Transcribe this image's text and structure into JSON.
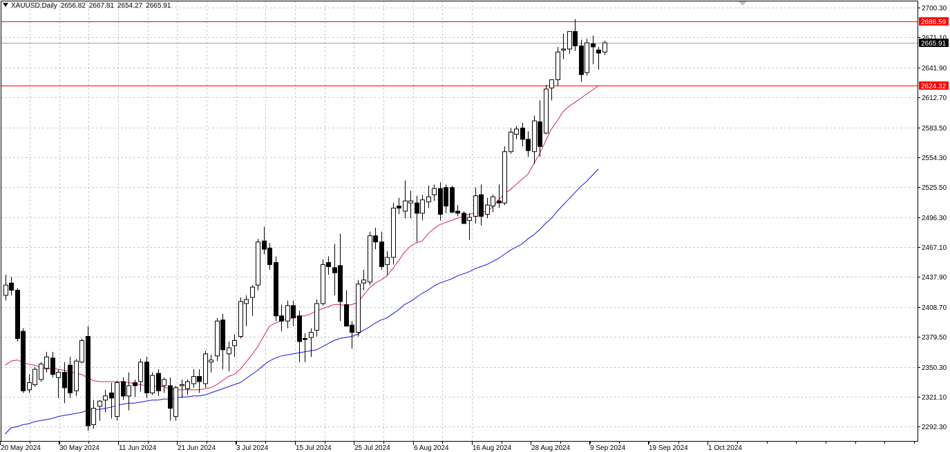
{
  "header": {
    "symbol": "XAUUSD,Daily",
    "open": "2656.82",
    "high": "2667.81",
    "low": "2654.27",
    "close": "2665.91"
  },
  "colors": {
    "background": "#ffffff",
    "grid": "#c8c8c8",
    "candle_outline": "#000000",
    "bull_fill": "#ffffff",
    "bear_fill": "#000000",
    "ma_fast": "#d6245a",
    "ma_slow": "#1414e6",
    "level_line": "#ff0000",
    "price_line": "#a0a0a0",
    "tag_red": "#ff0000",
    "tag_black": "#000000"
  },
  "chart_data": {
    "type": "candlestick",
    "y_ticks": [
      2700.3,
      2671.1,
      2641.9,
      2612.7,
      2583.5,
      2554.3,
      2525.5,
      2496.3,
      2467.1,
      2437.9,
      2408.7,
      2379.5,
      2350.3,
      2321.1,
      2292.3
    ],
    "y_tick_labels": [
      "2700.30",
      "2671.10",
      "2641.90",
      "2612.70",
      "2583.50",
      "2554.30",
      "2525.50",
      "2496.30",
      "2467.10",
      "2437.90",
      "2408.70",
      "2379.50",
      "2350.30",
      "2321.10",
      "2292.30"
    ],
    "x_tick_labels": [
      "20 May 2024",
      "30 May 2024",
      "11 Jun 2024",
      "21 Jun 2024",
      "3 Jul 2024",
      "15 Jul 2024",
      "25 Jul 2024",
      "6 Aug 2024",
      "16 Aug 2024",
      "28 Aug 2024",
      "9 Sep 2024",
      "19 Sep 2024",
      "1 Oct 2024"
    ],
    "horizontal_levels": [
      {
        "value": 2686.59,
        "label": "2686.59",
        "style": "level"
      },
      {
        "value": 2624.32,
        "label": "2624.32",
        "style": "level"
      },
      {
        "value": 2665.91,
        "label": "2665.91",
        "style": "current"
      }
    ],
    "candles": [
      [
        2420,
        2440,
        2415,
        2430
      ],
      [
        2432,
        2438,
        2420,
        2425
      ],
      [
        2425,
        2427,
        2375,
        2378
      ],
      [
        2385,
        2388,
        2325,
        2327
      ],
      [
        2328,
        2343,
        2325,
        2335
      ],
      [
        2333,
        2350,
        2331,
        2348
      ],
      [
        2338,
        2355,
        2336,
        2353
      ],
      [
        2349,
        2365,
        2345,
        2360
      ],
      [
        2359,
        2365,
        2340,
        2343
      ],
      [
        2340,
        2348,
        2320,
        2345
      ],
      [
        2345,
        2355,
        2315,
        2330
      ],
      [
        2352,
        2360,
        2320,
        2325
      ],
      [
        2327,
        2358,
        2322,
        2356
      ],
      [
        2355,
        2378,
        2354,
        2376
      ],
      [
        2380,
        2390,
        2288,
        2293
      ],
      [
        2294,
        2318,
        2290,
        2310
      ],
      [
        2312,
        2318,
        2298,
        2317
      ],
      [
        2318,
        2328,
        2306,
        2322
      ],
      [
        2325,
        2335,
        2300,
        2320
      ],
      [
        2302,
        2337,
        2298,
        2335
      ],
      [
        2336,
        2340,
        2318,
        2322
      ],
      [
        2322,
        2345,
        2308,
        2332
      ],
      [
        2335,
        2338,
        2321,
        2332
      ],
      [
        2336,
        2358,
        2326,
        2355
      ],
      [
        2355,
        2360,
        2320,
        2325
      ],
      [
        2325,
        2345,
        2323,
        2342
      ],
      [
        2344,
        2348,
        2322,
        2327
      ],
      [
        2332,
        2340,
        2325,
        2338
      ],
      [
        2332,
        2340,
        2298,
        2310
      ],
      [
        2302,
        2332,
        2298,
        2330
      ],
      [
        2332,
        2338,
        2320,
        2333
      ],
      [
        2329,
        2338,
        2323,
        2336
      ],
      [
        2334,
        2348,
        2330,
        2341
      ],
      [
        2341,
        2348,
        2325,
        2336
      ],
      [
        2334,
        2366,
        2330,
        2363
      ],
      [
        2355,
        2362,
        2345,
        2357
      ],
      [
        2361,
        2398,
        2356,
        2395
      ],
      [
        2396,
        2402,
        2348,
        2367
      ],
      [
        2363,
        2375,
        2346,
        2369
      ],
      [
        2371,
        2382,
        2360,
        2376
      ],
      [
        2380,
        2418,
        2378,
        2414
      ],
      [
        2412,
        2420,
        2390,
        2416
      ],
      [
        2418,
        2430,
        2400,
        2428
      ],
      [
        2430,
        2475,
        2425,
        2472
      ],
      [
        2473,
        2487,
        2460,
        2465
      ],
      [
        2466,
        2471,
        2445,
        2450
      ],
      [
        2452,
        2458,
        2395,
        2400
      ],
      [
        2400,
        2411,
        2385,
        2395
      ],
      [
        2395,
        2415,
        2388,
        2410
      ],
      [
        2410,
        2415,
        2390,
        2398
      ],
      [
        2400,
        2405,
        2355,
        2375
      ],
      [
        2378,
        2383,
        2355,
        2377
      ],
      [
        2379,
        2388,
        2360,
        2384
      ],
      [
        2386,
        2416,
        2380,
        2412
      ],
      [
        2412,
        2455,
        2410,
        2450
      ],
      [
        2452,
        2458,
        2440,
        2448
      ],
      [
        2447,
        2470,
        2420,
        2442
      ],
      [
        2449,
        2480,
        2395,
        2414
      ],
      [
        2411,
        2425,
        2390,
        2390
      ],
      [
        2391,
        2395,
        2368,
        2384
      ],
      [
        2384,
        2435,
        2380,
        2431
      ],
      [
        2432,
        2445,
        2425,
        2435
      ],
      [
        2433,
        2482,
        2430,
        2478
      ],
      [
        2478,
        2486,
        2465,
        2472
      ],
      [
        2472,
        2482,
        2445,
        2448
      ],
      [
        2450,
        2463,
        2440,
        2457
      ],
      [
        2457,
        2510,
        2450,
        2505
      ],
      [
        2507,
        2515,
        2499,
        2505
      ],
      [
        2502,
        2532,
        2495,
        2512
      ],
      [
        2510,
        2522,
        2495,
        2512
      ],
      [
        2510,
        2517,
        2472,
        2500
      ],
      [
        2500,
        2518,
        2493,
        2513
      ],
      [
        2511,
        2527,
        2505,
        2516
      ],
      [
        2518,
        2528,
        2512,
        2524
      ],
      [
        2524,
        2530,
        2493,
        2499
      ],
      [
        2525,
        2528,
        2500,
        2507
      ],
      [
        2525,
        2527,
        2500,
        2501
      ],
      [
        2502,
        2508,
        2497,
        2500
      ],
      [
        2500,
        2502,
        2490,
        2490
      ],
      [
        2493,
        2500,
        2474,
        2496
      ],
      [
        2497,
        2525,
        2490,
        2517
      ],
      [
        2518,
        2528,
        2488,
        2497
      ],
      [
        2499,
        2515,
        2495,
        2508
      ],
      [
        2507,
        2518,
        2501,
        2516
      ],
      [
        2512,
        2528,
        2505,
        2510
      ],
      [
        2510,
        2565,
        2508,
        2560
      ],
      [
        2560,
        2583,
        2558,
        2579
      ],
      [
        2577,
        2585,
        2572,
        2582
      ],
      [
        2583,
        2588,
        2565,
        2572
      ],
      [
        2572,
        2580,
        2555,
        2561
      ],
      [
        2560,
        2595,
        2548,
        2590
      ],
      [
        2589,
        2610,
        2555,
        2565
      ],
      [
        2578,
        2625,
        2577,
        2621
      ],
      [
        2622,
        2629,
        2610,
        2630
      ],
      [
        2630,
        2662,
        2624,
        2657
      ],
      [
        2659,
        2675,
        2650,
        2660
      ],
      [
        2660,
        2675,
        2655,
        2677
      ],
      [
        2677,
        2689,
        2658,
        2663
      ],
      [
        2663,
        2669,
        2628,
        2635
      ],
      [
        2637,
        2670,
        2634,
        2666
      ],
      [
        2665,
        2673,
        2645,
        2662
      ],
      [
        2659,
        2662,
        2640,
        2656
      ],
      [
        2657,
        2668,
        2654,
        2666
      ]
    ],
    "ma_fast": [
      2352,
      2356,
      2357,
      2355,
      2353,
      2352,
      2350,
      2348,
      2349,
      2348,
      2347,
      2346,
      2344,
      2343,
      2340,
      2337,
      2336,
      2336,
      2336,
      2336,
      2336,
      2335,
      2334,
      2333,
      2332,
      2332,
      2331,
      2331,
      2329,
      2328,
      2328,
      2328,
      2328,
      2328,
      2329,
      2330,
      2333,
      2337,
      2341,
      2343,
      2348,
      2355,
      2362,
      2370,
      2380,
      2390,
      2393,
      2395,
      2397,
      2398,
      2400,
      2400,
      2402,
      2405,
      2407,
      2409,
      2411,
      2411,
      2410,
      2411,
      2413,
      2420,
      2427,
      2432,
      2435,
      2439,
      2446,
      2454,
      2462,
      2468,
      2471,
      2473,
      2480,
      2485,
      2489,
      2491,
      2493,
      2495,
      2497,
      2499,
      2500,
      2501,
      2502,
      2506,
      2513,
      2519,
      2523,
      2528,
      2533,
      2538,
      2548,
      2558,
      2570,
      2582,
      2590,
      2599,
      2604,
      2608,
      2612,
      2616,
      2620,
      2624
    ],
    "ma_slow": [
      2285,
      2291,
      2292,
      2294,
      2295,
      2297,
      2298,
      2299,
      2300,
      2302,
      2303,
      2304,
      2305,
      2306,
      2308,
      2309,
      2309,
      2310,
      2311,
      2313,
      2314,
      2315,
      2315,
      2316,
      2317,
      2318,
      2318,
      2319,
      2319,
      2320,
      2321,
      2321,
      2322,
      2322,
      2323,
      2325,
      2327,
      2329,
      2331,
      2333,
      2335,
      2339,
      2343,
      2347,
      2352,
      2356,
      2359,
      2361,
      2362,
      2363,
      2364,
      2365,
      2366,
      2367,
      2370,
      2373,
      2376,
      2378,
      2379,
      2380,
      2382,
      2386,
      2389,
      2393,
      2396,
      2398,
      2402,
      2406,
      2411,
      2414,
      2418,
      2422,
      2425,
      2429,
      2432,
      2434,
      2436,
      2439,
      2441,
      2443,
      2446,
      2448,
      2450,
      2453,
      2456,
      2460,
      2464,
      2467,
      2470,
      2475,
      2479,
      2484,
      2490,
      2495,
      2502,
      2508,
      2514,
      2520,
      2526,
      2531,
      2537,
      2543
    ]
  }
}
